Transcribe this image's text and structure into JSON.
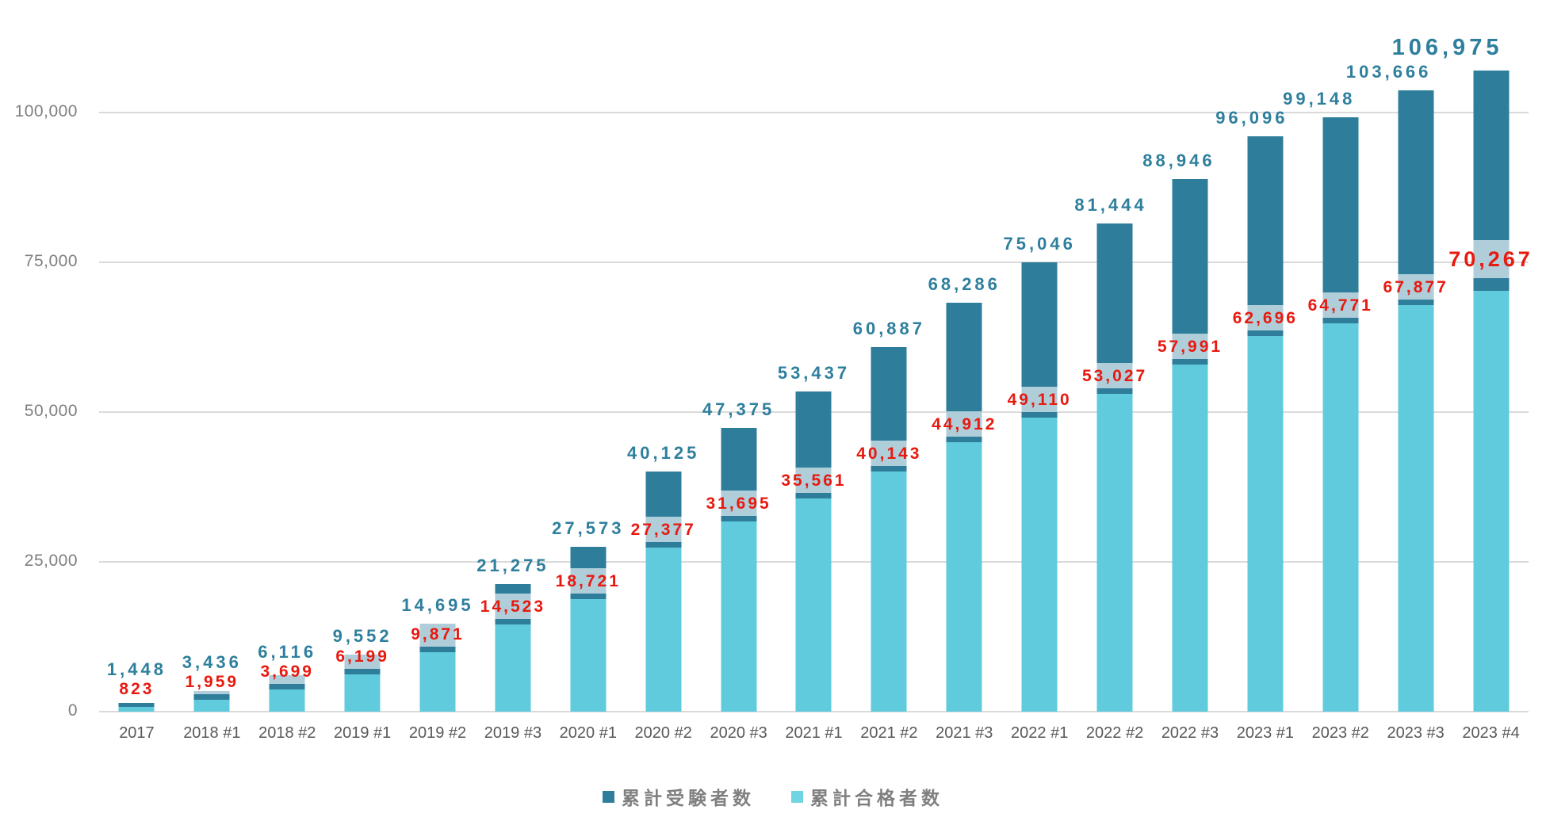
{
  "chart_data": {
    "type": "bar",
    "subtype": "overlapped-bars (totals behind, passers in front)",
    "title": "",
    "categories": [
      "2017",
      "2018 #1",
      "2018 #2",
      "2019 #1",
      "2019 #2",
      "2019 #3",
      "2020 #1",
      "2020 #2",
      "2020 #3",
      "2021 #1",
      "2021 #2",
      "2021 #3",
      "2022 #1",
      "2022 #2",
      "2022 #3",
      "2023 #1",
      "2023 #2",
      "2023 #3",
      "2023 #4"
    ],
    "series": [
      {
        "name": "累計受験者数",
        "color": "#2E7E9B",
        "label_color": "#2E7F9D",
        "values": [
          1448,
          3436,
          6116,
          9552,
          14695,
          21275,
          27573,
          40125,
          47375,
          53437,
          60887,
          68286,
          75046,
          81444,
          88946,
          96096,
          99148,
          103666,
          106975
        ],
        "labels": [
          "1,448",
          "3,436",
          "6,116",
          "9,552",
          "14,695",
          "21,275",
          "27,573",
          "40,125",
          "47,375",
          "53,437",
          "60,887",
          "68,286",
          "75,046",
          "81,444",
          "88,946",
          "96,096",
          "99,148",
          "103,666",
          "106,975"
        ]
      },
      {
        "name": "累計合格者数",
        "color": "#5FCBDC",
        "label_color": "#E8190F",
        "values": [
          823,
          1959,
          3699,
          6199,
          9871,
          14523,
          18721,
          27377,
          31695,
          35561,
          40143,
          44912,
          49110,
          53027,
          57991,
          62696,
          64771,
          67877,
          70267
        ],
        "labels": [
          "823",
          "1,959",
          "3,699",
          "6,199",
          "9,871",
          "14,523",
          "18,721",
          "27,377",
          "31,695",
          "35,561",
          "40,143",
          "44,912",
          "49,110",
          "53,027",
          "57,991",
          "62,696",
          "64,771",
          "67,877",
          "70,267"
        ]
      }
    ],
    "ylim": [
      0,
      100000
    ],
    "yticks": [
      {
        "value": 0,
        "label": "0"
      },
      {
        "value": 25000,
        "label": "25,000"
      },
      {
        "value": 50000,
        "label": "50,000"
      },
      {
        "value": 75000,
        "label": "75,000"
      },
      {
        "value": 100000,
        "label": "100,000"
      }
    ],
    "grid": "horizontal",
    "gridline_color": "#dadada",
    "axis_text_color": "#7f7f7f",
    "category_text_color": "#595959",
    "highlight_band_color": "rgba(255,255,255,0.62)",
    "emphasized_last_category": true,
    "legend_position": "bottom-center"
  },
  "legend": {
    "items": [
      {
        "label": "累計受験者数",
        "color": "#2E7E9B"
      },
      {
        "label": "累計合格者数",
        "color": "#70D4E2"
      }
    ]
  }
}
